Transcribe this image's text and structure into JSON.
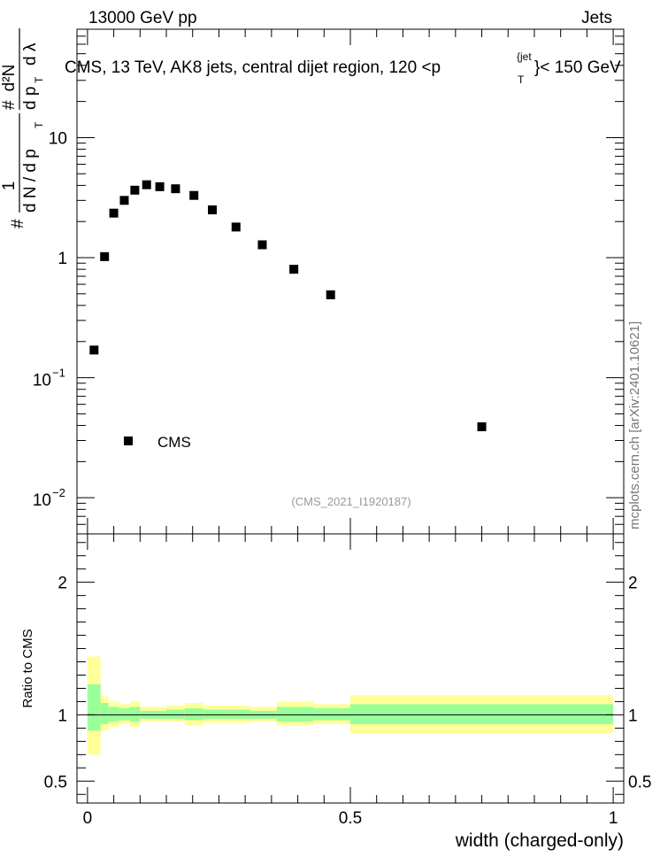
{
  "header": {
    "left": "13000 GeV pp",
    "right": "Jets"
  },
  "watermark": "mcplots.cern.ch [arXiv:2401.10621]",
  "colors": {
    "band_inner": "#99ff99",
    "band_outer": "#ffff99",
    "marker": "#000000"
  },
  "chart_data": [
    {
      "type": "scatter",
      "title": "CMS, 13 TeV, AK8 jets, central dijet region, 120 <p",
      "title_super": "{jet",
      "title_sub": "T",
      "title_tail": "}< 150 GeV",
      "ylabel": {
        "frac_top": "1",
        "frac_bottom": "d N / d p",
        "frac_bottom_sub": "T",
        "deriv_top": "d²N",
        "deriv_bottom": "d p",
        "deriv_bottom_sub": "T",
        "deriv_tail": "d λ",
        "hash": "#"
      },
      "yscale": "log",
      "ylim": [
        0.005,
        80
      ],
      "xlim": [
        -0.02,
        1.02
      ],
      "ytick_labels": [
        {
          "value": 10,
          "text": "10"
        },
        {
          "value": 1,
          "text": "1"
        },
        {
          "value": 0.1,
          "base": "10",
          "exp": "−1"
        },
        {
          "value": 0.01,
          "base": "10",
          "exp": "−2"
        }
      ],
      "legend": {
        "label": "CMS",
        "position": "lower-left"
      },
      "analysis_id": "(CMS_2021_I1920187)",
      "series": [
        {
          "name": "CMS",
          "x": [
            0.0125,
            0.0325,
            0.05,
            0.07,
            0.09,
            0.1125,
            0.1375,
            0.1675,
            0.2025,
            0.2375,
            0.2825,
            0.3325,
            0.3925,
            0.4625,
            0.75
          ],
          "y": [
            0.17,
            1.02,
            2.35,
            3.0,
            3.65,
            4.05,
            3.9,
            3.75,
            3.3,
            2.5,
            1.8,
            1.28,
            0.8,
            0.49,
            0.039
          ]
        }
      ]
    },
    {
      "type": "area",
      "ylabel": "Ratio to CMS",
      "xlabel": "width (charged-only)",
      "xlim": [
        -0.02,
        1.02
      ],
      "ylim": [
        0.335,
        2.365
      ],
      "x_ticks": [
        "0",
        "0.5",
        "1"
      ],
      "y_ticks": [
        "0.5",
        "1",
        "2"
      ],
      "bins": [
        {
          "x0": 0.0,
          "x1": 0.025,
          "inner": [
            0.88,
            1.23
          ],
          "outer": [
            0.7,
            1.44
          ]
        },
        {
          "x0": 0.025,
          "x1": 0.04,
          "inner": [
            0.93,
            1.09
          ],
          "outer": [
            0.88,
            1.14
          ]
        },
        {
          "x0": 0.04,
          "x1": 0.06,
          "inner": [
            0.95,
            1.06
          ],
          "outer": [
            0.91,
            1.1
          ]
        },
        {
          "x0": 0.06,
          "x1": 0.08,
          "inner": [
            0.96,
            1.05
          ],
          "outer": [
            0.93,
            1.08
          ]
        },
        {
          "x0": 0.08,
          "x1": 0.1,
          "inner": [
            0.95,
            1.06
          ],
          "outer": [
            0.91,
            1.1
          ]
        },
        {
          "x0": 0.1,
          "x1": 0.125,
          "inner": [
            0.97,
            1.03
          ],
          "outer": [
            0.95,
            1.06
          ]
        },
        {
          "x0": 0.125,
          "x1": 0.15,
          "inner": [
            0.97,
            1.03
          ],
          "outer": [
            0.95,
            1.06
          ]
        },
        {
          "x0": 0.15,
          "x1": 0.185,
          "inner": [
            0.97,
            1.04
          ],
          "outer": [
            0.95,
            1.07
          ]
        },
        {
          "x0": 0.185,
          "x1": 0.22,
          "inner": [
            0.96,
            1.05
          ],
          "outer": [
            0.92,
            1.09
          ]
        },
        {
          "x0": 0.22,
          "x1": 0.26,
          "inner": [
            0.97,
            1.04
          ],
          "outer": [
            0.94,
            1.07
          ]
        },
        {
          "x0": 0.26,
          "x1": 0.31,
          "inner": [
            0.97,
            1.04
          ],
          "outer": [
            0.94,
            1.07
          ]
        },
        {
          "x0": 0.31,
          "x1": 0.36,
          "inner": [
            0.97,
            1.03
          ],
          "outer": [
            0.95,
            1.06
          ]
        },
        {
          "x0": 0.36,
          "x1": 0.43,
          "inner": [
            0.95,
            1.06
          ],
          "outer": [
            0.92,
            1.1
          ]
        },
        {
          "x0": 0.43,
          "x1": 0.5,
          "inner": [
            0.96,
            1.05
          ],
          "outer": [
            0.93,
            1.08
          ]
        },
        {
          "x0": 0.5,
          "x1": 1.0,
          "inner": [
            0.93,
            1.08
          ],
          "outer": [
            0.86,
            1.15
          ]
        }
      ],
      "reference_line": 1
    }
  ]
}
